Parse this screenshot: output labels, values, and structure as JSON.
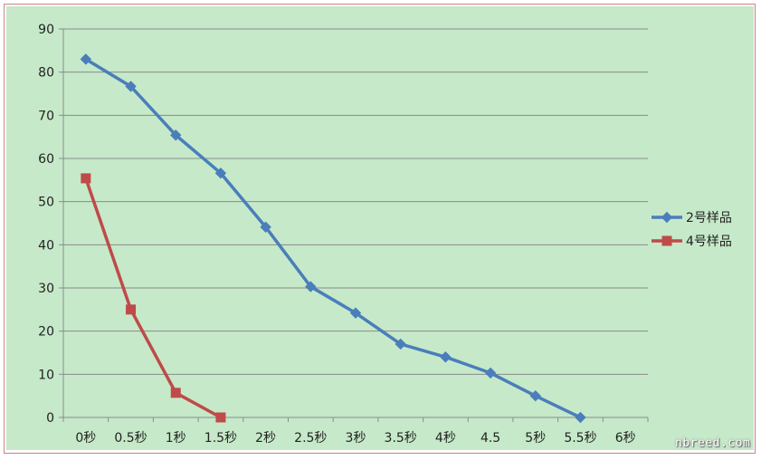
{
  "chart_data": {
    "type": "line",
    "title": "",
    "xlabel": "",
    "ylabel": "",
    "ylim": [
      0,
      90
    ],
    "yticks": [
      0,
      10,
      20,
      30,
      40,
      50,
      60,
      70,
      80,
      90
    ],
    "categories": [
      "0秒",
      "0.5秒",
      "1秒",
      "1.5秒",
      "2秒",
      "2.5秒",
      "3秒",
      "3.5秒",
      "4秒",
      "4.5",
      "5秒",
      "5.5秒",
      "6秒"
    ],
    "grid": true,
    "legend_position": "right",
    "series": [
      {
        "name": "2号样品",
        "color": "#4a7ebb",
        "marker": "diamond",
        "values": [
          83,
          76.7,
          65.4,
          56.6,
          44.1,
          30.3,
          24.2,
          17,
          14,
          10.3,
          5,
          0,
          null
        ]
      },
      {
        "name": "4号样品",
        "color": "#be4b48",
        "marker": "square",
        "values": [
          55.4,
          25,
          5.7,
          0,
          null,
          null,
          null,
          null,
          null,
          null,
          null,
          null,
          null
        ]
      }
    ]
  },
  "watermark": "nbreed.com"
}
